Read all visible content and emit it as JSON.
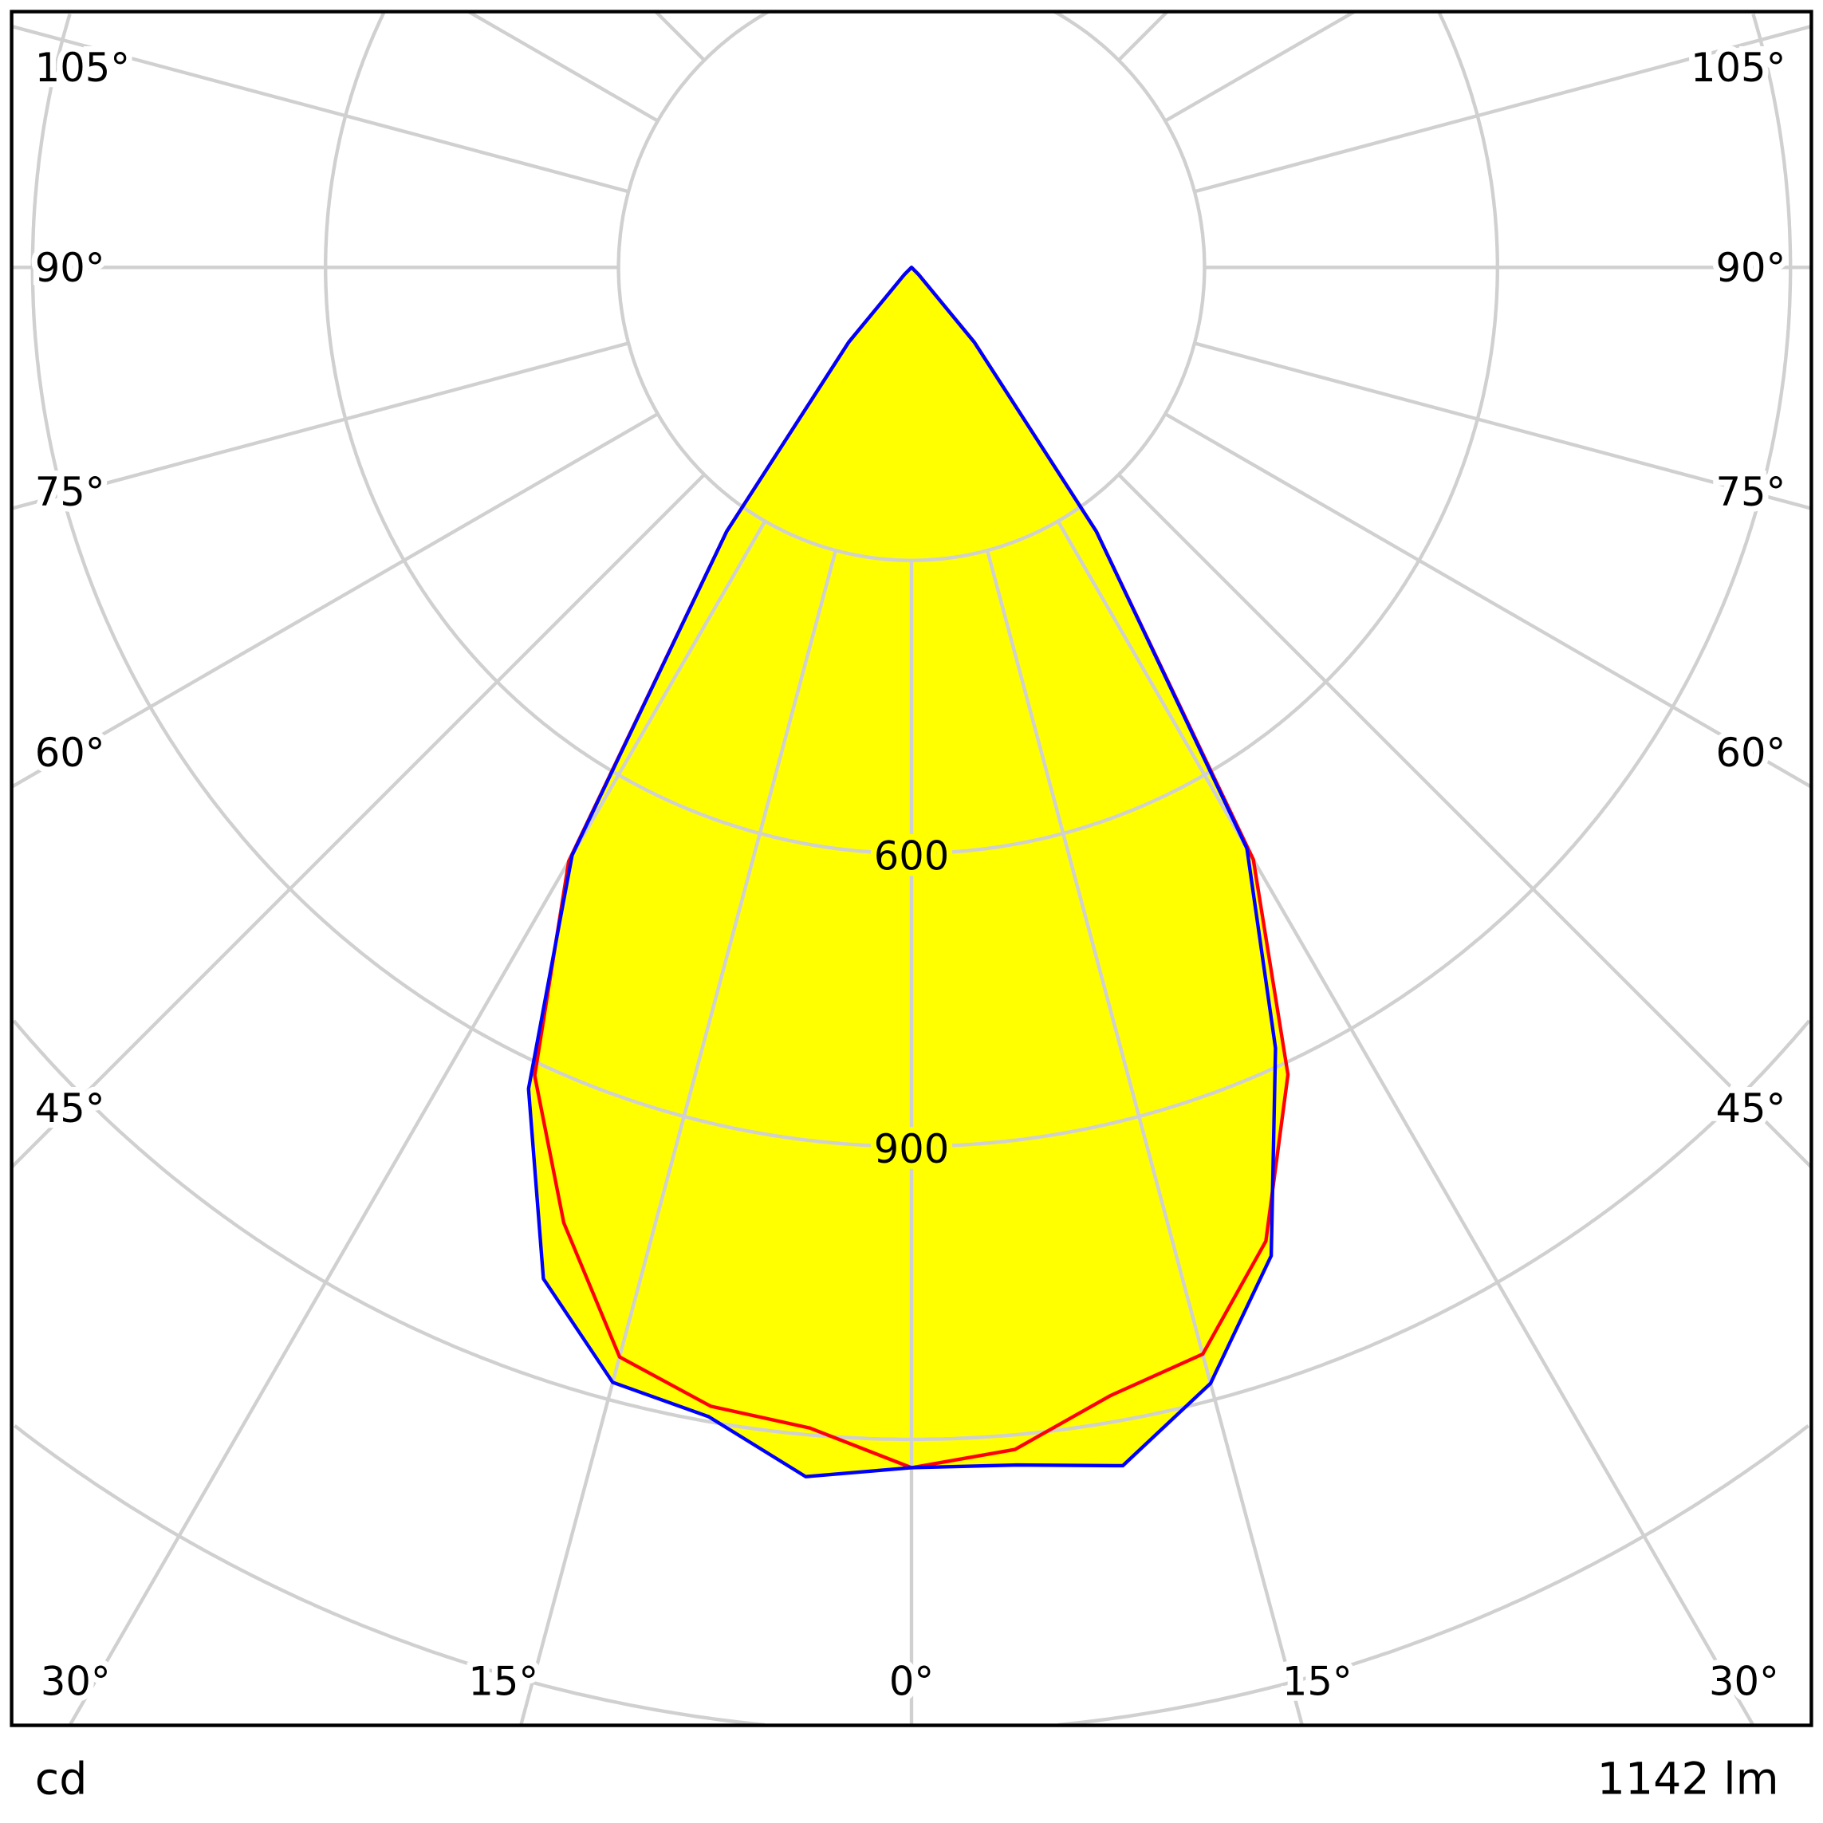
{
  "chart_data": {
    "type": "polar",
    "title": "",
    "unit_label": "cd",
    "flux_label": "1142 lm",
    "radial_max_cd": 1500,
    "radial_ring_step_cd": 300,
    "radial_tick_labels": [
      "600",
      "900"
    ],
    "angle_tick_labels_left": [
      "105°",
      "90°",
      "75°",
      "60°",
      "45°"
    ],
    "angle_tick_labels_right": [
      "105°",
      "90°",
      "75°",
      "60°",
      "45°"
    ],
    "angle_tick_labels_bottom": [
      "30°",
      "15°",
      "0°",
      "15°",
      "30°"
    ],
    "colors": {
      "fill": "#ffff00",
      "grid": "#d0d0d0",
      "series_red": "#ff0000",
      "series_blue": "#0000ff"
    },
    "series": [
      {
        "name": "red",
        "color": "#ff0000",
        "angles_deg": [
          -90,
          -45,
          -40,
          -35,
          -30,
          -25,
          -20,
          -15,
          -10,
          -5,
          0,
          5,
          10,
          15,
          20,
          25,
          30,
          35,
          40,
          45,
          90
        ],
        "values_cd": [
          0,
          10,
          100,
          330,
          702,
          913,
          1041,
          1155,
          1184,
          1193,
          1229,
          1215,
          1173,
          1152,
          1061,
          912,
          700,
          330,
          100,
          10,
          0
        ]
      },
      {
        "name": "blue",
        "color": "#0000ff",
        "angles_deg": [
          -90,
          -45,
          -40,
          -35,
          -30,
          -25,
          -20,
          -15,
          -10,
          -5,
          0,
          5,
          10,
          15,
          20,
          25,
          30,
          35,
          40,
          45,
          90
        ],
        "values_cd": [
          0,
          10,
          100,
          330,
          695,
          928,
          1102,
          1182,
          1195,
          1243,
          1229,
          1231,
          1246,
          1183,
          1077,
          882,
          687,
          330,
          100,
          10,
          0
        ]
      }
    ]
  }
}
